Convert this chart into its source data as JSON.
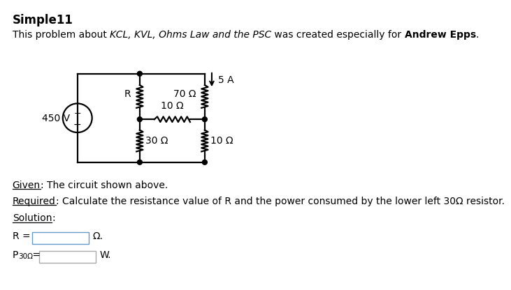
{
  "title": "Simple11",
  "voltage": "450 V",
  "resistor_R_label": "R",
  "r70_label": "70 Ω",
  "r10_horiz_label": "10 Ω",
  "r30_label": "30 Ω",
  "r10_right_label": "10 Ω",
  "current_label": "5 A",
  "given_text": "Given",
  "given_rest": ": The circuit shown above.",
  "required_text": "Required",
  "required_rest": ": Calculate the resistance value of R and the power consumed by the lower left 30Ω resistor.",
  "solution_text": "Solution",
  "solution_rest": ":",
  "r_unit": "Ω.",
  "p_unit": "W.",
  "background": "#ffffff",
  "text_color": "#000000",
  "box_color_r": "#6699cc",
  "box_color_p": "#aaaaaa"
}
